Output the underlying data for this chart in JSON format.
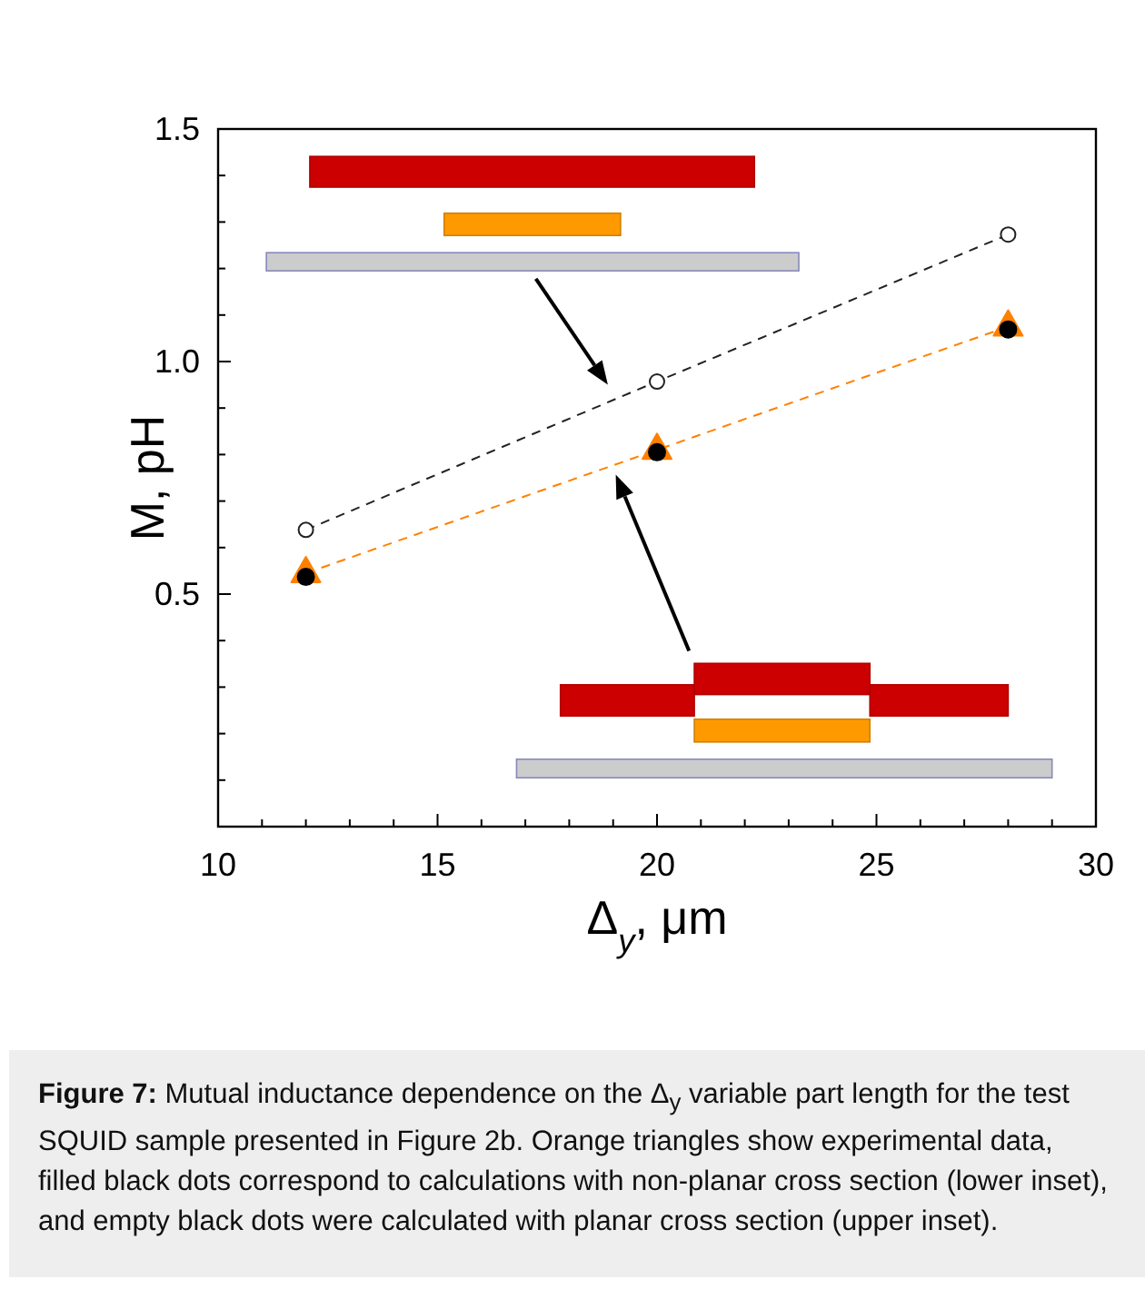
{
  "chart_data": {
    "type": "line",
    "xlabel": "Δ$_{y}$, μm",
    "ylabel": "M, pH",
    "x": [
      12,
      20,
      28
    ],
    "xlim": [
      10,
      30
    ],
    "ylim": [
      0,
      1.5
    ],
    "xticks": [
      10,
      {
        "value": 11,
        "label": null
      },
      {
        "value": 12,
        "label": null
      },
      {
        "value": 13,
        "label": null
      },
      {
        "value": 14,
        "label": null
      },
      15,
      {
        "value": 16,
        "label": null
      },
      {
        "value": 17,
        "label": null
      },
      {
        "value": 18,
        "label": null
      },
      {
        "value": 19,
        "label": null
      },
      20,
      {
        "value": 21,
        "label": null
      },
      {
        "value": 22,
        "label": null
      },
      {
        "value": 23,
        "label": null
      },
      {
        "value": 24,
        "label": null
      },
      25,
      {
        "value": 26,
        "label": null
      },
      {
        "value": 27,
        "label": null
      },
      {
        "value": 28,
        "label": null
      },
      {
        "value": 29,
        "label": null
      },
      30
    ],
    "yticks": [
      {
        "value": 0.1,
        "label": null
      },
      {
        "value": 0.2,
        "label": null
      },
      {
        "value": 0.3,
        "label": null
      },
      {
        "value": 0.4,
        "label": null
      },
      {
        "value": 0.5,
        "label": "0.5"
      },
      {
        "value": 0.6,
        "label": null
      },
      {
        "value": 0.7,
        "label": null
      },
      {
        "value": 0.8,
        "label": null
      },
      {
        "value": 0.9,
        "label": null
      },
      {
        "value": 1.0,
        "label": "1.0"
      },
      {
        "value": 1.1,
        "label": null
      },
      {
        "value": 1.2,
        "label": null
      },
      {
        "value": 1.3,
        "label": null
      },
      {
        "value": 1.4,
        "label": null
      },
      {
        "value": 1.5,
        "label": "1.5"
      }
    ],
    "grid": false,
    "series": [
      {
        "color": "#222222",
        "marker": "circle",
        "line_style": "dashed",
        "values": [
          0.638,
          0.957,
          1.273
        ]
      },
      {
        "color": "#ff8000",
        "marker": "triangle",
        "line_style": "dashed",
        "values": [
          0.545,
          0.81,
          1.075
        ]
      },
      {
        "type": "scatter",
        "color": "#000000",
        "marker": "circle",
        "values": [
          0.537,
          0.805,
          1.069
        ]
      }
    ],
    "annotations": [
      "Figure 7: Mutual inductance dependence on the Δ$_{y}$ variable part length for the test SQUID sample presented in Figure 2b. Orange triangles show experimental data, filled black dots correspond to calculations with non-planar cross section (lower inset), and empty black dots were calculated with planar cross section (upper inset)."
    ]
  }
}
